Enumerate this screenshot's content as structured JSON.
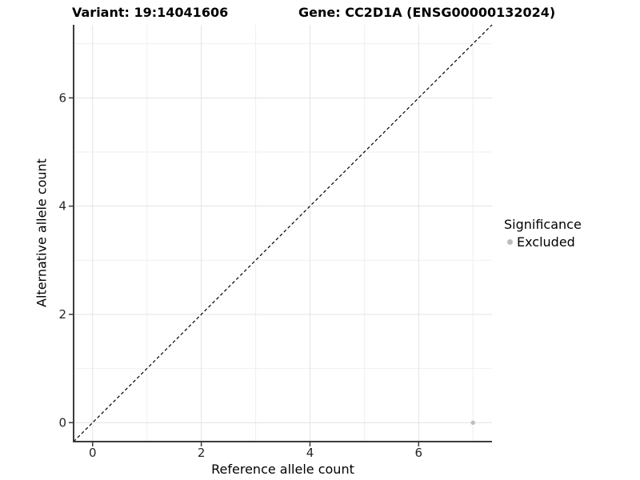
{
  "header": {
    "variant_title": "Variant: 19:14041606",
    "gene_title": "Gene: CC2D1A (ENSG00000132024)"
  },
  "chart_data": {
    "type": "scatter",
    "title": "Variant: 19:14041606    Gene: CC2D1A (ENSG00000132024)",
    "xlabel": "Reference allele count",
    "ylabel": "Alternative allele count",
    "xlim": [
      -0.35,
      7.35
    ],
    "ylim": [
      -0.35,
      7.35
    ],
    "x_ticks": [
      0,
      2,
      4,
      6
    ],
    "y_ticks": [
      0,
      2,
      4,
      6
    ],
    "x_minor_gridlines": [
      1,
      3,
      5,
      7
    ],
    "y_minor_gridlines": [
      1,
      3,
      5,
      7
    ],
    "grid": "major and minor gridlines on white background",
    "legend_position": "right",
    "legend": {
      "title": "Significance",
      "items": [
        {
          "label": "Excluded",
          "color": "#bdbdbd"
        }
      ]
    },
    "series": [
      {
        "name": "Excluded",
        "color": "#bdbdbd",
        "points": [
          {
            "x": 7,
            "y": 0
          }
        ]
      }
    ],
    "reference_line": {
      "kind": "identity y=x",
      "style": "dashed",
      "color": "#000000"
    }
  },
  "style_colors": {
    "grid_major": "#e3e3e3",
    "grid_minor": "#efefef",
    "axis_line": "#3b3b3b",
    "tick_text": "#262626",
    "point": "#bdbdbd"
  }
}
